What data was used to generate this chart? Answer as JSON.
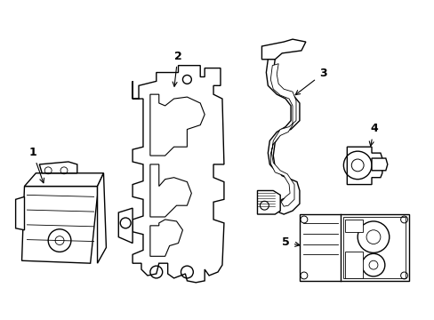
{
  "background_color": "#ffffff",
  "line_color": "#000000",
  "line_width": 1.0,
  "label_fontsize": 9,
  "figsize": [
    4.89,
    3.6
  ],
  "dpi": 100
}
